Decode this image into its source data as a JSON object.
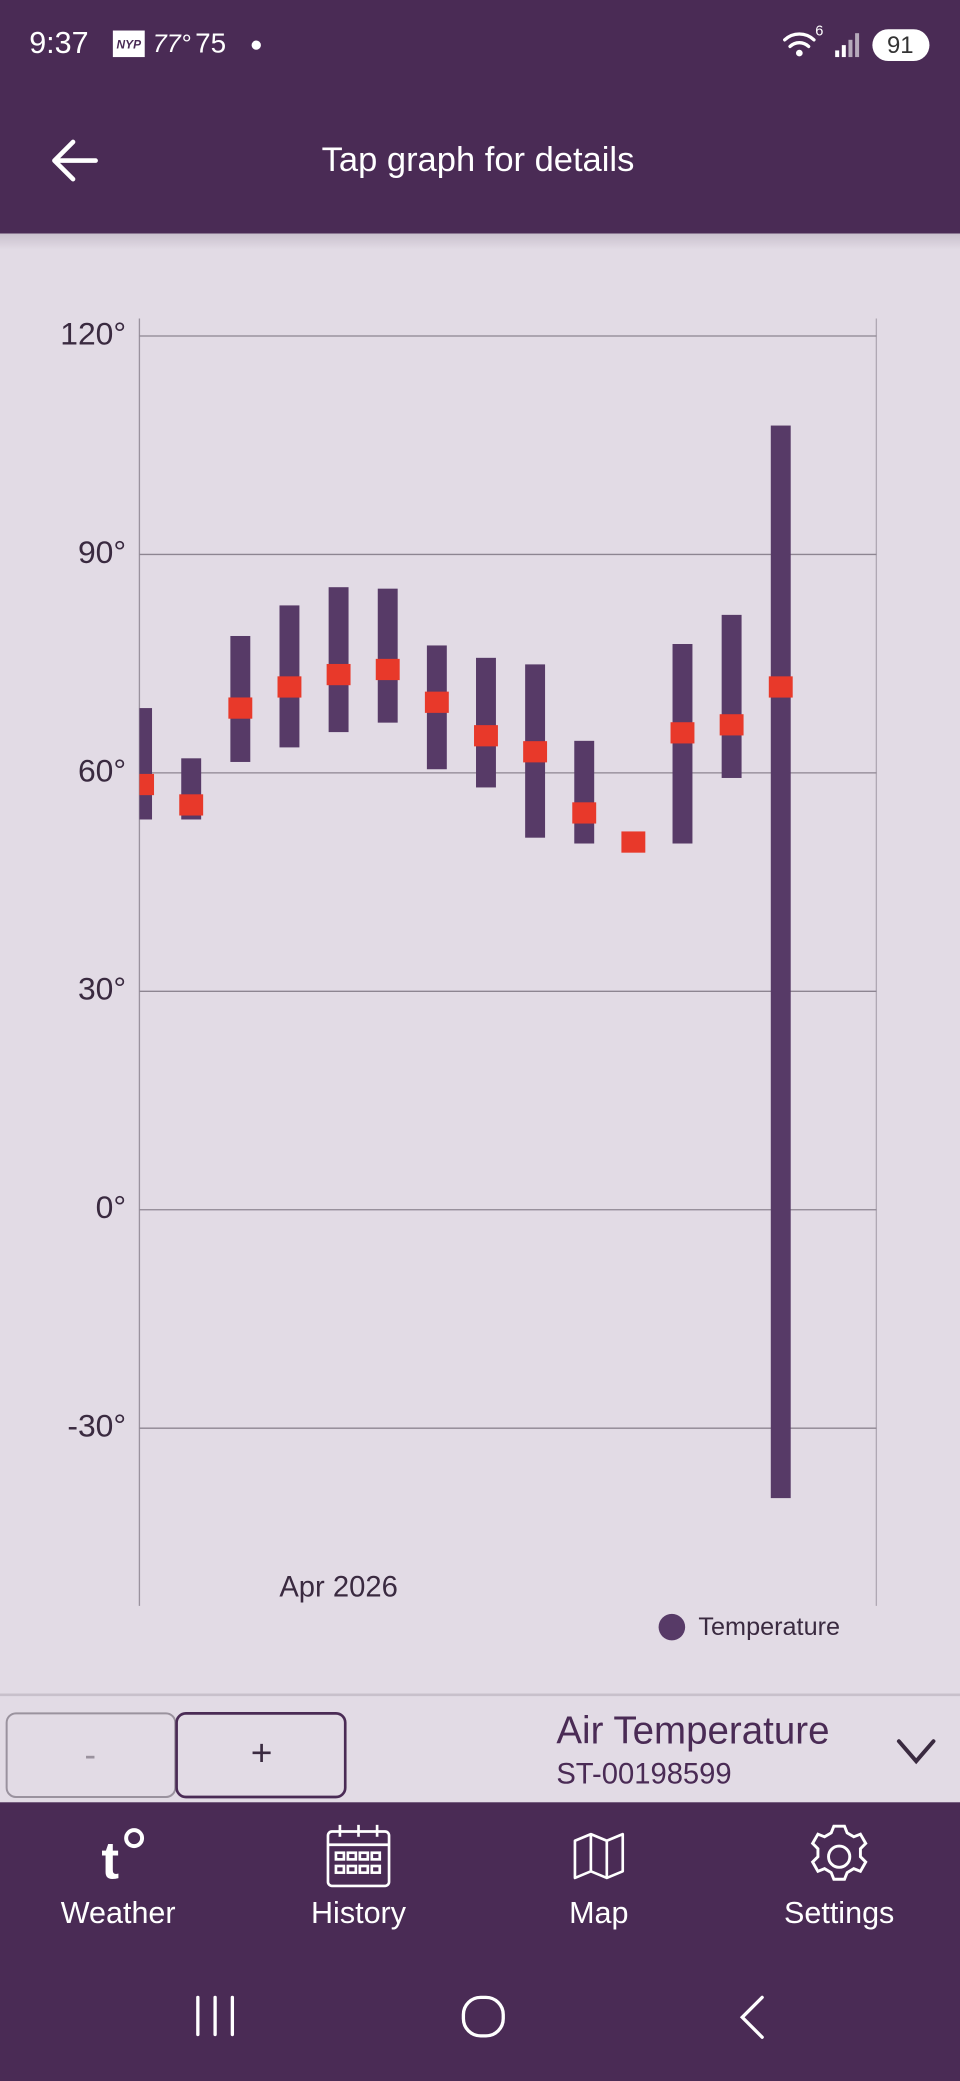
{
  "status_bar": {
    "time": "9:37",
    "news_badge": "NYP",
    "weather_temp": "77°",
    "weather_value": "75",
    "wifi_level": "6",
    "battery": "91"
  },
  "header": {
    "title": "Tap graph for details"
  },
  "chart_data": {
    "type": "range_bar",
    "categories": [
      null,
      null,
      null,
      null,
      "Apr 2026",
      null,
      null,
      null,
      null,
      null,
      null,
      null,
      null,
      null
    ],
    "series": [
      {
        "name": "Temperature",
        "color": "#573a67",
        "marker_color": "#e8392a",
        "low": [
          53.6,
          53.6,
          61.5,
          63.5,
          65.6,
          66.9,
          60.5,
          58.0,
          51.1,
          50.3,
          null,
          50.3,
          59.3,
          -39.6
        ],
        "high": [
          68.9,
          62.0,
          78.8,
          83.0,
          85.5,
          85.3,
          77.5,
          75.8,
          74.9,
          64.4,
          null,
          77.7,
          81.7,
          107.7
        ],
        "values": [
          58.4,
          55.6,
          68.9,
          71.8,
          73.5,
          74.2,
          69.7,
          65.1,
          62.9,
          54.5,
          50.5,
          65.5,
          66.6,
          71.8
        ]
      }
    ],
    "ylim": [
      -54.4,
      122.4
    ],
    "yticks": [
      {
        "value": 120,
        "label": "120°"
      },
      {
        "value": 90,
        "label": "90°"
      },
      {
        "value": 60,
        "label": "60°"
      },
      {
        "value": 30,
        "label": "30°"
      },
      {
        "value": 0,
        "label": "0°"
      },
      {
        "value": -30,
        "label": "-30°"
      }
    ],
    "grid": true,
    "legend": "bottom-right"
  },
  "controls": {
    "zoom_out": "-",
    "zoom_in": "+",
    "sensor_title": "Air Temperature",
    "sensor_id": "ST-00198599"
  },
  "nav": {
    "weather_icon": "t",
    "items": [
      "Weather",
      "History",
      "Map",
      "Settings"
    ]
  }
}
